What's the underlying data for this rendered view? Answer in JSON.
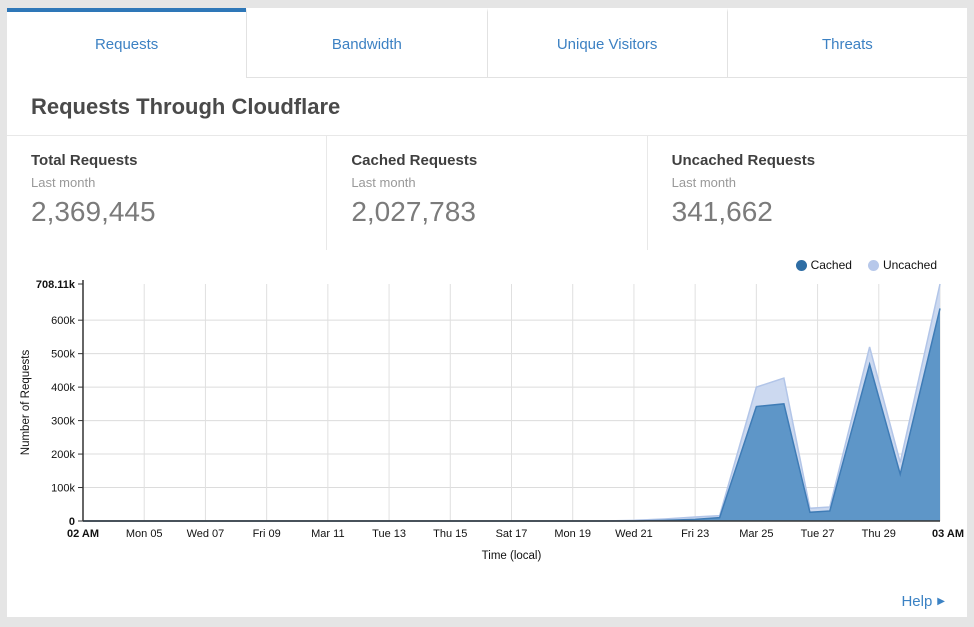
{
  "tabs": [
    {
      "label": "Requests",
      "active": true
    },
    {
      "label": "Bandwidth",
      "active": false
    },
    {
      "label": "Unique Visitors",
      "active": false
    },
    {
      "label": "Threats",
      "active": false
    }
  ],
  "page_title": "Requests Through Cloudflare",
  "stats": [
    {
      "title": "Total Requests",
      "period": "Last month",
      "value": "2,369,445"
    },
    {
      "title": "Cached Requests",
      "period": "Last month",
      "value": "2,027,783"
    },
    {
      "title": "Uncached Requests",
      "period": "Last month",
      "value": "341,662"
    }
  ],
  "chart_data": {
    "type": "area",
    "stacked": true,
    "units": "thousands of requests",
    "xlabel": "Time (local)",
    "ylabel": "Number of Requests",
    "ylim": [
      0,
      708.11
    ],
    "grid": true,
    "legend_position": "top-right",
    "x": [
      0,
      17,
      18,
      19,
      20,
      20.8,
      22,
      22.9,
      23.75,
      24.4,
      25.7,
      26.7,
      28
    ],
    "series": [
      {
        "name": "Cached",
        "fill": "#5e96c8",
        "stroke": "#3f7cb6",
        "dot": "#2e6da4",
        "values": [
          0,
          0,
          0,
          2,
          5,
          10,
          342,
          350,
          26,
          30,
          468,
          140,
          635
        ]
      },
      {
        "name": "Uncached",
        "fill": "#ccd9f0",
        "stroke": "#b2c5e8",
        "dot": "#b7c8ea",
        "values": [
          0,
          0,
          2,
          4,
          7,
          6,
          58,
          77,
          12,
          12,
          52,
          35,
          73.11
        ]
      }
    ],
    "x_ticks": [
      {
        "day": 0,
        "label": "02 AM",
        "bold": true
      },
      {
        "day": 2,
        "label": "Mon 05"
      },
      {
        "day": 4,
        "label": "Wed 07"
      },
      {
        "day": 6,
        "label": "Fri 09"
      },
      {
        "day": 8,
        "label": "Mar 11"
      },
      {
        "day": 10,
        "label": "Tue 13"
      },
      {
        "day": 12,
        "label": "Thu 15"
      },
      {
        "day": 14,
        "label": "Sat 17"
      },
      {
        "day": 16,
        "label": "Mon 19"
      },
      {
        "day": 18,
        "label": "Wed 21"
      },
      {
        "day": 20,
        "label": "Fri 23"
      },
      {
        "day": 22,
        "label": "Mar 25"
      },
      {
        "day": 24,
        "label": "Tue 27"
      },
      {
        "day": 26,
        "label": "Thu 29"
      },
      {
        "day": 28,
        "label": "03 AM",
        "bold": true
      }
    ],
    "y_ticks": [
      {
        "v": 0,
        "label": "0",
        "bold": true
      },
      {
        "v": 100,
        "label": "100k"
      },
      {
        "v": 200,
        "label": "200k"
      },
      {
        "v": 300,
        "label": "300k"
      },
      {
        "v": 400,
        "label": "400k"
      },
      {
        "v": 500,
        "label": "500k"
      },
      {
        "v": 600,
        "label": "600k"
      },
      {
        "v": 708.11,
        "label": "708.11k",
        "bold": true
      }
    ]
  },
  "footer": {
    "help_label": "Help",
    "help_arrow": "▶"
  },
  "colors": {
    "tab_active_bar": "#2e77b8",
    "tab_text": "#3c81c3",
    "help_link": "#3b82c4",
    "cached_fill": "#5e96c8",
    "uncached_fill": "#ccd9f0",
    "page_background": "#e5e5e5"
  }
}
